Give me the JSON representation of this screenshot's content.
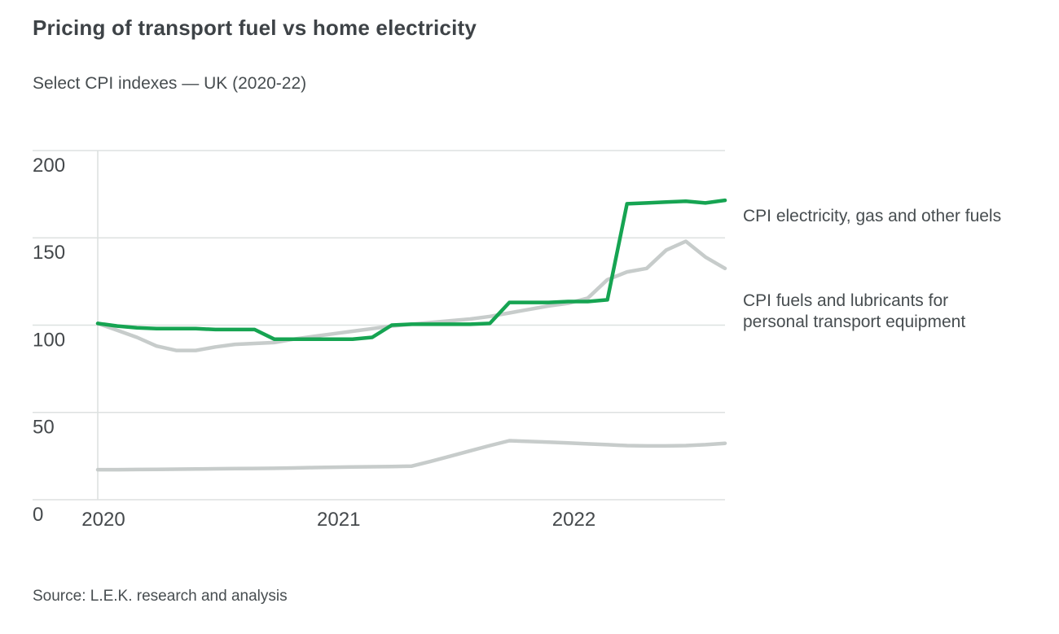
{
  "header": {
    "title": "Pricing of transport fuel vs home electricity",
    "subtitle": "Select CPI indexes — UK (2020-22)"
  },
  "legend": [
    {
      "label": "CPI electricity, gas and other fuels",
      "color": "#16a452"
    },
    {
      "label": "CPI fuels and lubricants for personal transport equipment",
      "color": "#c7cccb"
    }
  ],
  "source": "Source: L.E.K. research and analysis",
  "chart_data": {
    "type": "line",
    "title": "Pricing of transport fuel vs home electricity",
    "subtitle": "Select CPI indexes — UK (2020-22)",
    "xlabel": "",
    "ylabel": "",
    "grid": "horizontal",
    "legend_position": "right",
    "ylim": [
      0,
      215
    ],
    "y_ticks": [
      0,
      50,
      100,
      150,
      200
    ],
    "x": [
      "2020-01",
      "2020-02",
      "2020-03",
      "2020-04",
      "2020-05",
      "2020-06",
      "2020-07",
      "2020-08",
      "2020-09",
      "2020-10",
      "2020-11",
      "2020-12",
      "2021-01",
      "2021-02",
      "2021-03",
      "2021-04",
      "2021-05",
      "2021-06",
      "2021-07",
      "2021-08",
      "2021-09",
      "2021-10",
      "2021-11",
      "2021-12",
      "2022-01",
      "2022-02",
      "2022-03",
      "2022-04",
      "2022-05",
      "2022-06",
      "2022-07",
      "2022-08",
      "2022-09"
    ],
    "x_tick_labels": [
      {
        "label": "2020",
        "index": 0
      },
      {
        "label": "2021",
        "index": 12
      },
      {
        "label": "2022",
        "index": 24
      }
    ],
    "colors": {
      "grid": "#dde1e0",
      "axis_text": "#45494c",
      "accent_green": "#16a452",
      "line_gray": "#c7cccb"
    },
    "series": [
      {
        "name": "CPI electricity, gas and other fuels",
        "color": "#16a452",
        "width": 4.5,
        "values": [
          101,
          99.5,
          98.5,
          98,
          98,
          98,
          97.5,
          97.5,
          97.5,
          92,
          92,
          92,
          92,
          92,
          93,
          100,
          100.5,
          100.5,
          100.5,
          100.5,
          101,
          113,
          113,
          113,
          113.5,
          113.5,
          114.5,
          169.5,
          170,
          170.5,
          171,
          170,
          171.5
        ]
      },
      {
        "name": "CPI fuels and lubricants for personal transport equipment",
        "color": "#c7cccb",
        "width": 4.5,
        "values": [
          101,
          97,
          93,
          88,
          85.5,
          85.5,
          87.5,
          89,
          89.5,
          90,
          92,
          93.5,
          95,
          96.5,
          98,
          99.5,
          100.5,
          101.5,
          102.5,
          103.5,
          105,
          107,
          109,
          111,
          112.5,
          115.5,
          126,
          130.5,
          132.5,
          143,
          148,
          139,
          132.5
        ]
      },
      {
        "name": "unlabeled bottom series",
        "color": "#c7cccb",
        "width": 4.5,
        "values": [
          17.2,
          17.2,
          17.3,
          17.4,
          17.5,
          17.6,
          17.7,
          17.8,
          17.9,
          18,
          18.2,
          18.4,
          18.6,
          18.8,
          18.9,
          19,
          19.2,
          22,
          25,
          28,
          31,
          33.8,
          33.4,
          33,
          32.5,
          32,
          31.5,
          31,
          30.8,
          30.8,
          31,
          31.5,
          32.3
        ]
      }
    ]
  }
}
